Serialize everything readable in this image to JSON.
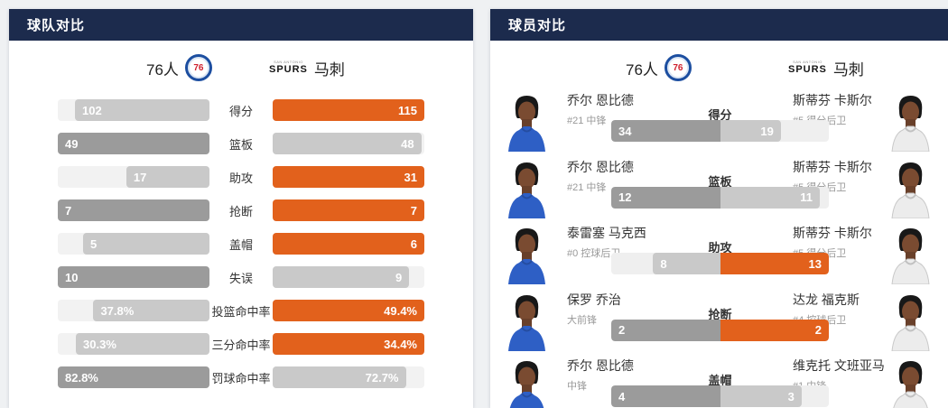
{
  "colors": {
    "header_bg": "#1c2b4d",
    "home_win": "#9b9b9b",
    "away_win": "#e2611c",
    "lose": "#c9c9c9",
    "track_team": "#f2f2f2",
    "track_player": "#efefef"
  },
  "logos": {
    "sixers_text": "76",
    "spurs_top": "SAN ANTONIO",
    "spurs_text": "SPURS"
  },
  "team_compare": {
    "title": "球队对比",
    "home": {
      "name": "76人"
    },
    "away": {
      "name": "马刺"
    },
    "rows": [
      {
        "label": "得分",
        "left": {
          "v": 102,
          "d": "102"
        },
        "right": {
          "v": 115,
          "d": "115"
        }
      },
      {
        "label": "篮板",
        "left": {
          "v": 49,
          "d": "49"
        },
        "right": {
          "v": 48,
          "d": "48"
        }
      },
      {
        "label": "助攻",
        "left": {
          "v": 17,
          "d": "17"
        },
        "right": {
          "v": 31,
          "d": "31"
        }
      },
      {
        "label": "抢断",
        "left": {
          "v": 7,
          "d": "7"
        },
        "right": {
          "v": 7,
          "d": "7"
        }
      },
      {
        "label": "盖帽",
        "left": {
          "v": 5,
          "d": "5"
        },
        "right": {
          "v": 6,
          "d": "6"
        }
      },
      {
        "label": "失误",
        "left": {
          "v": 10,
          "d": "10"
        },
        "right": {
          "v": 9,
          "d": "9"
        }
      },
      {
        "label": "投篮命中率",
        "left": {
          "v": 37.8,
          "d": "37.8%"
        },
        "right": {
          "v": 49.4,
          "d": "49.4%"
        }
      },
      {
        "label": "三分命中率",
        "left": {
          "v": 30.3,
          "d": "30.3%"
        },
        "right": {
          "v": 34.4,
          "d": "34.4%"
        }
      },
      {
        "label": "罚球命中率",
        "left": {
          "v": 82.8,
          "d": "82.8%"
        },
        "right": {
          "v": 72.7,
          "d": "72.7%"
        }
      }
    ]
  },
  "player_compare": {
    "title": "球员对比",
    "home": {
      "name": "76人"
    },
    "away": {
      "name": "马刺"
    },
    "rows": [
      {
        "stat": "得分",
        "left": {
          "name": "乔尔 恩比德",
          "sub": "#21 中锋",
          "v": 34,
          "d": "34"
        },
        "right": {
          "name": "斯蒂芬 卡斯尔",
          "sub": "#5 得分后卫",
          "v": 19,
          "d": "19"
        }
      },
      {
        "stat": "篮板",
        "left": {
          "name": "乔尔 恩比德",
          "sub": "#21 中锋",
          "v": 12,
          "d": "12"
        },
        "right": {
          "name": "斯蒂芬 卡斯尔",
          "sub": "#5 得分后卫",
          "v": 11,
          "d": "11"
        }
      },
      {
        "stat": "助攻",
        "left": {
          "name": "泰雷塞 马克西",
          "sub": "#0 控球后卫",
          "v": 8,
          "d": "8"
        },
        "right": {
          "name": "斯蒂芬 卡斯尔",
          "sub": "#5 得分后卫",
          "v": 13,
          "d": "13"
        }
      },
      {
        "stat": "抢断",
        "left": {
          "name": "保罗 乔治",
          "sub": "大前锋",
          "v": 2,
          "d": "2"
        },
        "right": {
          "name": "达龙 福克斯",
          "sub": "#4 控球后卫",
          "v": 2,
          "d": "2"
        }
      },
      {
        "stat": "盖帽",
        "left": {
          "name": "乔尔 恩比德",
          "sub": "中锋",
          "v": 4,
          "d": "4"
        },
        "right": {
          "name": "维克托 文班亚马",
          "sub": "#1 中锋",
          "v": 3,
          "d": "3"
        }
      }
    ]
  }
}
